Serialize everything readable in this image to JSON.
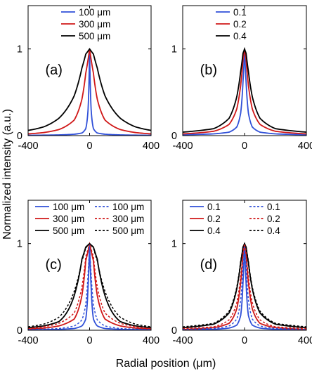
{
  "figure": {
    "ylabel": "Normalized intensity (a.u.)",
    "xlabel": "Radial position (μm)"
  },
  "chart_data": [
    {
      "type": "line",
      "panel_label": "(a)",
      "xlim": [
        -400,
        400
      ],
      "ylim": [
        0,
        1.5
      ],
      "xticks": [
        "-400",
        "0",
        "400"
      ],
      "yticks": [
        "0",
        "1"
      ],
      "legend_location": "top-right",
      "series": [
        {
          "name": "100 μm",
          "color": "#3050d8",
          "dash": "solid",
          "x": [
            -400,
            -200,
            -100,
            -50,
            -25,
            -10,
            0,
            10,
            25,
            50,
            100,
            200,
            400
          ],
          "y": [
            0.004,
            0.008,
            0.016,
            0.03,
            0.08,
            0.3,
            1.0,
            0.3,
            0.08,
            0.03,
            0.016,
            0.008,
            0.004
          ]
        },
        {
          "name": "300 μm",
          "color": "#d01818",
          "dash": "solid",
          "x": [
            -400,
            -300,
            -200,
            -100,
            -50,
            -25,
            0,
            25,
            50,
            100,
            200,
            300,
            400
          ],
          "y": [
            0.02,
            0.035,
            0.07,
            0.18,
            0.42,
            0.72,
            1.0,
            0.72,
            0.42,
            0.18,
            0.07,
            0.035,
            0.02
          ]
        },
        {
          "name": "500 μm",
          "color": "#000000",
          "dash": "solid",
          "x": [
            -400,
            -300,
            -200,
            -100,
            -50,
            -25,
            0,
            25,
            50,
            100,
            200,
            300,
            400
          ],
          "y": [
            0.06,
            0.1,
            0.2,
            0.46,
            0.78,
            0.94,
            1.0,
            0.94,
            0.78,
            0.46,
            0.2,
            0.1,
            0.06
          ]
        }
      ]
    },
    {
      "type": "line",
      "panel_label": "(b)",
      "xlim": [
        -400,
        400
      ],
      "ylim": [
        0,
        1.5
      ],
      "xticks": [
        "-400",
        "0",
        "400"
      ],
      "yticks": [
        "0",
        "1"
      ],
      "legend_location": "top-right",
      "series": [
        {
          "name": "0.1",
          "color": "#3050d8",
          "dash": "solid",
          "x": [
            -400,
            -200,
            -100,
            -50,
            -25,
            -10,
            0,
            10,
            25,
            50,
            100,
            200,
            400
          ],
          "y": [
            0.01,
            0.02,
            0.04,
            0.1,
            0.26,
            0.62,
            1.0,
            0.62,
            0.26,
            0.1,
            0.04,
            0.02,
            0.01
          ]
        },
        {
          "name": "0.2",
          "color": "#d01818",
          "dash": "solid",
          "x": [
            -400,
            -200,
            -100,
            -50,
            -25,
            -10,
            0,
            10,
            25,
            50,
            100,
            200,
            400
          ],
          "y": [
            0.02,
            0.05,
            0.13,
            0.31,
            0.58,
            0.88,
            1.0,
            0.88,
            0.58,
            0.31,
            0.13,
            0.05,
            0.02
          ]
        },
        {
          "name": "0.4",
          "color": "#000000",
          "dash": "solid",
          "x": [
            -400,
            -200,
            -100,
            -50,
            -25,
            -10,
            0,
            10,
            25,
            50,
            100,
            200,
            400
          ],
          "y": [
            0.04,
            0.08,
            0.2,
            0.45,
            0.74,
            0.95,
            1.0,
            0.95,
            0.74,
            0.45,
            0.2,
            0.08,
            0.04
          ]
        }
      ]
    },
    {
      "type": "line",
      "panel_label": "(c)",
      "xlim": [
        -400,
        400
      ],
      "ylim": [
        0,
        1.5
      ],
      "xticks": [
        "-400",
        "0",
        "400"
      ],
      "yticks": [
        "0",
        "1"
      ],
      "legend_location": "top-right",
      "series": [
        {
          "name": "100 μm",
          "color": "#3050d8",
          "dash": "solid",
          "x": [
            -400,
            -200,
            -100,
            -50,
            -25,
            -10,
            0,
            10,
            25,
            50,
            100,
            200,
            400
          ],
          "y": [
            0.005,
            0.01,
            0.02,
            0.05,
            0.13,
            0.5,
            1.0,
            0.5,
            0.13,
            0.05,
            0.02,
            0.01,
            0.005
          ]
        },
        {
          "name": "300 μm",
          "color": "#d01818",
          "dash": "solid",
          "x": [
            -400,
            -300,
            -200,
            -100,
            -50,
            -25,
            0,
            25,
            50,
            100,
            200,
            300,
            400
          ],
          "y": [
            0.015,
            0.025,
            0.05,
            0.13,
            0.4,
            0.8,
            1.0,
            0.8,
            0.4,
            0.13,
            0.05,
            0.025,
            0.015
          ]
        },
        {
          "name": "500 μm",
          "color": "#000000",
          "dash": "solid",
          "x": [
            -400,
            -300,
            -200,
            -100,
            -50,
            -25,
            0,
            25,
            50,
            100,
            200,
            300,
            400
          ],
          "y": [
            0.03,
            0.05,
            0.1,
            0.4,
            0.82,
            0.96,
            1.0,
            0.96,
            0.82,
            0.4,
            0.1,
            0.05,
            0.03
          ]
        },
        {
          "name": "100 μm",
          "color": "#3050d8",
          "dash": "dashed",
          "x": [
            -400,
            -200,
            -100,
            -50,
            -25,
            -10,
            0,
            10,
            25,
            50,
            100,
            200,
            400
          ],
          "y": [
            0.008,
            0.02,
            0.05,
            0.12,
            0.3,
            0.65,
            1.0,
            0.65,
            0.3,
            0.12,
            0.05,
            0.02,
            0.008
          ]
        },
        {
          "name": "300 μm",
          "color": "#d01818",
          "dash": "dashed",
          "x": [
            -400,
            -300,
            -200,
            -100,
            -50,
            -25,
            0,
            25,
            50,
            100,
            200,
            300,
            400
          ],
          "y": [
            0.02,
            0.04,
            0.08,
            0.2,
            0.5,
            0.85,
            1.0,
            0.85,
            0.5,
            0.2,
            0.08,
            0.04,
            0.02
          ]
        },
        {
          "name": "500 μm",
          "color": "#000000",
          "dash": "dashed",
          "x": [
            -400,
            -300,
            -200,
            -100,
            -50,
            -25,
            0,
            25,
            50,
            100,
            200,
            300,
            400
          ],
          "y": [
            0.04,
            0.07,
            0.15,
            0.45,
            0.8,
            0.95,
            1.0,
            0.95,
            0.8,
            0.45,
            0.15,
            0.07,
            0.04
          ]
        }
      ]
    },
    {
      "type": "line",
      "panel_label": "(d)",
      "xlim": [
        -400,
        400
      ],
      "ylim": [
        0,
        1.5
      ],
      "xticks": [
        "-400",
        "0",
        "400"
      ],
      "yticks": [
        "0",
        "1"
      ],
      "legend_location": "top-right",
      "series": [
        {
          "name": "0.1",
          "color": "#3050d8",
          "dash": "solid",
          "x": [
            -400,
            -200,
            -100,
            -50,
            -25,
            -10,
            0,
            10,
            25,
            50,
            100,
            200,
            400
          ],
          "y": [
            0.005,
            0.01,
            0.025,
            0.06,
            0.17,
            0.55,
            1.0,
            0.55,
            0.17,
            0.06,
            0.025,
            0.01,
            0.005
          ]
        },
        {
          "name": "0.2",
          "color": "#d01818",
          "dash": "solid",
          "x": [
            -400,
            -200,
            -100,
            -50,
            -25,
            -10,
            0,
            10,
            25,
            50,
            100,
            200,
            400
          ],
          "y": [
            0.01,
            0.03,
            0.08,
            0.25,
            0.55,
            0.88,
            1.0,
            0.88,
            0.55,
            0.25,
            0.08,
            0.03,
            0.01
          ]
        },
        {
          "name": "0.4",
          "color": "#000000",
          "dash": "solid",
          "x": [
            -400,
            -200,
            -100,
            -50,
            -25,
            -10,
            0,
            10,
            25,
            50,
            100,
            200,
            400
          ],
          "y": [
            0.03,
            0.07,
            0.2,
            0.48,
            0.78,
            0.96,
            1.0,
            0.96,
            0.78,
            0.48,
            0.2,
            0.07,
            0.03
          ]
        },
        {
          "name": "0.1",
          "color": "#3050d8",
          "dash": "dashed",
          "x": [
            -400,
            -200,
            -100,
            -50,
            -25,
            -10,
            0,
            10,
            25,
            50,
            100,
            200,
            400
          ],
          "y": [
            0.01,
            0.02,
            0.05,
            0.13,
            0.35,
            0.75,
            1.0,
            0.75,
            0.35,
            0.13,
            0.05,
            0.02,
            0.01
          ]
        },
        {
          "name": "0.2",
          "color": "#d01818",
          "dash": "dashed",
          "x": [
            -400,
            -200,
            -100,
            -50,
            -25,
            -10,
            0,
            10,
            25,
            50,
            100,
            200,
            400
          ],
          "y": [
            0.02,
            0.04,
            0.12,
            0.32,
            0.62,
            0.9,
            1.0,
            0.9,
            0.62,
            0.32,
            0.12,
            0.04,
            0.02
          ]
        },
        {
          "name": "0.4",
          "color": "#000000",
          "dash": "dashed",
          "x": [
            -400,
            -200,
            -100,
            -50,
            -25,
            -10,
            0,
            10,
            25,
            50,
            100,
            200,
            400
          ],
          "y": [
            0.04,
            0.08,
            0.22,
            0.5,
            0.8,
            0.96,
            1.0,
            0.96,
            0.8,
            0.5,
            0.22,
            0.08,
            0.04
          ]
        }
      ]
    }
  ]
}
